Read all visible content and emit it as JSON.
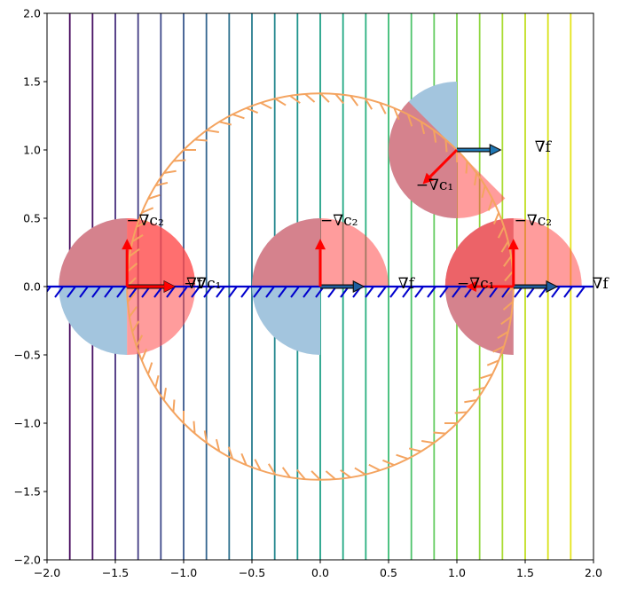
{
  "chart_data": {
    "type": "diagram-plot",
    "title": "",
    "xlabel": "",
    "ylabel": "",
    "xlim": [
      -2.0,
      2.0
    ],
    "ylim": [
      -2.0,
      2.0
    ],
    "grid": false,
    "x_ticks": [
      -2.0,
      -1.5,
      -1.0,
      -0.5,
      0.0,
      0.5,
      1.0,
      1.5,
      2.0
    ],
    "y_ticks": [
      -2.0,
      -1.5,
      -1.0,
      -0.5,
      0.0,
      0.5,
      1.0,
      1.5,
      2.0
    ],
    "x_tick_labels": [
      "−2.0",
      "−1.5",
      "−1.0",
      "−0.5",
      "0.0",
      "0.5",
      "1.0",
      "1.5",
      "2.0"
    ],
    "y_tick_labels": [
      "−2.0",
      "−1.5",
      "−1.0",
      "−0.5",
      "0.0",
      "0.5",
      "1.0",
      "1.5",
      "2.0"
    ],
    "contour_lines": {
      "description": "Vertical level sets of f(x,y)=x, viridis colormap",
      "x_values": [
        -1.8333,
        -1.6667,
        -1.5,
        -1.3333,
        -1.1667,
        -1.0,
        -0.8333,
        -0.6667,
        -0.5,
        -0.3333,
        -0.1667,
        0.0,
        0.1667,
        0.3333,
        0.5,
        0.6667,
        0.8333,
        1.0,
        1.1667,
        1.3333,
        1.5,
        1.6667,
        1.8333
      ],
      "colors": [
        "#46085c",
        "#471164",
        "#472f7d",
        "#433d84",
        "#3e4989",
        "#38588c",
        "#32648e",
        "#2d708e",
        "#287c8e",
        "#24878e",
        "#1f948c",
        "#1fa187",
        "#22a884",
        "#2ab07f",
        "#3bbb75",
        "#4ec36b",
        "#63cb5f",
        "#7ad151",
        "#90d743",
        "#aadc32",
        "#c2df23",
        "#d8e219",
        "#e5e419"
      ]
    },
    "constraints": [
      {
        "name": "c1",
        "shape": "circle",
        "center": [
          0,
          0
        ],
        "radius": 1.4142,
        "color": "#f4a460",
        "style": "ticked-stroke"
      },
      {
        "name": "c2",
        "shape": "line",
        "y": 0.0,
        "x_range": [
          -2.0,
          2.0
        ],
        "color": "#0000cd",
        "style": "ticked-stroke (hatch below)"
      }
    ],
    "points": [
      {
        "id": "p-left",
        "center": [
          -1.4142,
          0.0
        ],
        "disc_radius": 0.5,
        "blue_half_dir": [
          -1,
          0
        ],
        "red_half_dirs": [
          [
            1,
            0
          ],
          [
            0,
            1
          ]
        ],
        "arrows": [
          {
            "label": "∇f",
            "from": [
              -1.4142,
              0
            ],
            "vec": [
              0.35,
              0
            ],
            "color": "#1f5fa0"
          },
          {
            "label": "−∇c1",
            "from": [
              -1.4142,
              0
            ],
            "vec": [
              0.35,
              0
            ],
            "color": "#ff0000"
          },
          {
            "label": "−∇c2",
            "from": [
              -1.4142,
              0
            ],
            "vec": [
              0,
              0.35
            ],
            "color": "#ff0000"
          }
        ],
        "labels": [
          {
            "text": "∇f",
            "at": [
              -0.98,
              0.0
            ]
          },
          {
            "text": "−∇c₁",
            "at": [
              -1.0,
              0.0
            ]
          },
          {
            "text": "−∇c₂",
            "at": [
              -1.42,
              0.46
            ]
          }
        ]
      },
      {
        "id": "p-origin",
        "center": [
          0.0,
          0.0
        ],
        "disc_radius": 0.5,
        "blue_half_dir": [
          -1,
          0
        ],
        "red_half_dirs": [
          [
            0,
            1
          ]
        ],
        "arrows": [
          {
            "label": "∇f",
            "from": [
              0,
              0
            ],
            "vec": [
              0.32,
              0
            ],
            "color": "#1f5fa0"
          },
          {
            "label": "−∇c2",
            "from": [
              0,
              0
            ],
            "vec": [
              0,
              0.35
            ],
            "color": "#ff0000"
          }
        ],
        "labels": [
          {
            "text": "∇f",
            "at": [
              0.57,
              0.0
            ]
          },
          {
            "text": "−∇c₂",
            "at": [
              0.0,
              0.46
            ]
          }
        ]
      },
      {
        "id": "p-right",
        "center": [
          1.4142,
          0.0
        ],
        "disc_radius": 0.5,
        "blue_half_dir": [
          -1,
          0
        ],
        "red_half_dirs": [
          [
            -1,
            0
          ],
          [
            0,
            1
          ]
        ],
        "arrows": [
          {
            "label": "∇f",
            "from": [
              1.4142,
              0
            ],
            "vec": [
              0.32,
              0
            ],
            "color": "#1f5fa0"
          },
          {
            "label": "−∇c1",
            "from": [
              1.4142,
              0
            ],
            "vec": [
              -0.35,
              0
            ],
            "color": "#ff0000"
          },
          {
            "label": "−∇c2",
            "from": [
              1.4142,
              0
            ],
            "vec": [
              0,
              0.35
            ],
            "color": "#ff0000"
          }
        ],
        "labels": [
          {
            "text": "∇f",
            "at": [
              1.99,
              0.0
            ]
          },
          {
            "text": "−∇c₁",
            "at": [
              1.0,
              0.0
            ]
          },
          {
            "text": "−∇c₂",
            "at": [
              1.42,
              0.46
            ]
          }
        ]
      },
      {
        "id": "p-top",
        "center": [
          1.0,
          1.0
        ],
        "disc_radius": 0.5,
        "blue_half_dir": [
          -1,
          0
        ],
        "red_half_dirs": [
          [
            -0.7071,
            -0.7071
          ]
        ],
        "arrows": [
          {
            "label": "∇f",
            "from": [
              1,
              1
            ],
            "vec": [
              0.32,
              0
            ],
            "color": "#1f77b4"
          },
          {
            "label": "−∇c1",
            "from": [
              1,
              1
            ],
            "vec": [
              -0.25,
              -0.25
            ],
            "color": "#ff0000"
          }
        ],
        "labels": [
          {
            "text": "∇f",
            "at": [
              1.57,
              1.0
            ]
          },
          {
            "text": "−∇c₁",
            "at": [
              0.7,
              0.72
            ]
          }
        ]
      }
    ],
    "colors": {
      "blue_half_disc": "#a3c5de",
      "red_half_disc": "#ff9595",
      "overlap": "#c87a86",
      "double_red": "#e0474f",
      "arrow_red": "#ff0000",
      "grad_f_arrow": "#1f77b4",
      "constraint_circle": "#f4a460",
      "constraint_line": "#0000cd"
    }
  }
}
